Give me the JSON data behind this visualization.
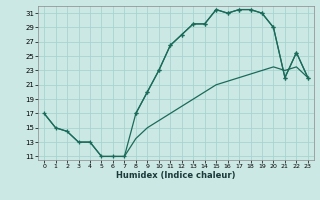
{
  "xlabel": "Humidex (Indice chaleur)",
  "bg_color": "#cce8e4",
  "grid_color": "#a8d4d0",
  "line_color": "#1a6b5a",
  "xlim_min": -0.5,
  "xlim_max": 23.5,
  "ylim_min": 10.5,
  "ylim_max": 32.0,
  "xticks": [
    0,
    1,
    2,
    3,
    4,
    5,
    6,
    7,
    8,
    9,
    10,
    11,
    12,
    13,
    14,
    15,
    16,
    17,
    18,
    19,
    20,
    21,
    22,
    23
  ],
  "yticks": [
    11,
    13,
    15,
    17,
    19,
    21,
    23,
    25,
    27,
    29,
    31
  ],
  "curve1_x": [
    0,
    1,
    2,
    3,
    4,
    5,
    6,
    7,
    8,
    9,
    10,
    11,
    12,
    13,
    14,
    15,
    16,
    17,
    18,
    19,
    20,
    21,
    22,
    23
  ],
  "curve1_y": [
    17,
    15,
    14.5,
    13,
    13,
    11,
    11,
    11,
    17,
    20,
    23,
    26.5,
    28,
    29.5,
    29.5,
    31.5,
    31,
    31.5,
    31.5,
    31,
    29,
    22,
    25.5,
    22
  ],
  "curve2_x": [
    0,
    1,
    2,
    3,
    4,
    5,
    6,
    7,
    8,
    9,
    10,
    11,
    12,
    13,
    14,
    15,
    16,
    17,
    18,
    19,
    20,
    21,
    22,
    23
  ],
  "curve2_y": [
    17,
    15,
    14.5,
    13,
    13,
    11,
    11,
    11,
    13.5,
    15,
    16,
    17,
    18,
    19,
    20,
    21,
    21.5,
    22,
    22.5,
    23,
    23.5,
    23,
    23.5,
    22
  ],
  "curve3_x": [
    8,
    9,
    10,
    11,
    12,
    13,
    14,
    15,
    16,
    17,
    18,
    19,
    20,
    21,
    22,
    23
  ],
  "curve3_y": [
    17,
    20,
    23,
    26.5,
    28,
    29.5,
    29.5,
    31.5,
    31,
    31.5,
    31.5,
    31,
    29,
    22,
    25.5,
    22
  ]
}
